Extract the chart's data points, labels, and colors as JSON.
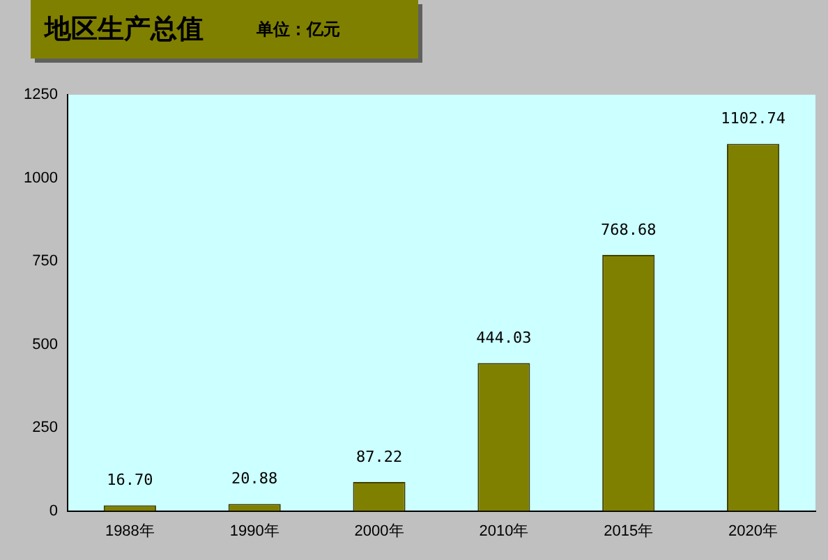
{
  "chart_data": {
    "type": "bar",
    "title": "地区生产总值",
    "subtitle": "单位：亿元",
    "categories": [
      "1988年",
      "1990年",
      "2000年",
      "2010年",
      "2015年",
      "2020年"
    ],
    "values": [
      16.7,
      20.88,
      87.22,
      444.03,
      768.68,
      1102.74
    ],
    "value_labels": [
      "16.70",
      "20.88",
      "87.22",
      "444.03",
      "768.68",
      "1102.74"
    ],
    "color": "#808000",
    "ylim": [
      0,
      1250
    ],
    "yticks": [
      0,
      250,
      500,
      750,
      1000,
      1250
    ],
    "grid": false,
    "legend": false
  }
}
